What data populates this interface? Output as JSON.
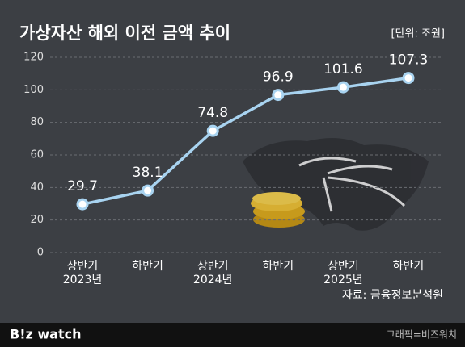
{
  "chart_data": {
    "type": "line",
    "title": "가상자산 해외 이전 금액 추이",
    "subtitle": "[단위: 조원]",
    "categories": [
      "상반기\n2023년",
      "하반기",
      "상반기\n2024년",
      "하반기",
      "상반기\n2025년",
      "하반기"
    ],
    "series": [
      {
        "name": "가상자산 해외 이전 금액",
        "color": "#a8d3f0",
        "values": [
          29.7,
          38.1,
          74.8,
          96.9,
          101.6,
          107.3
        ]
      }
    ],
    "ylim": [
      0,
      120
    ],
    "yticks": [
      0,
      20,
      40,
      60,
      80,
      100,
      120
    ],
    "grid": true,
    "source": "자료: 금융정보분석원"
  },
  "footer": {
    "logo": "B!z watch",
    "credit": "그래픽=비즈워치"
  }
}
